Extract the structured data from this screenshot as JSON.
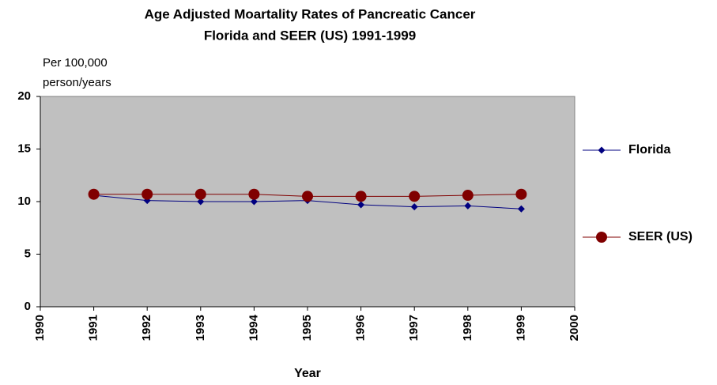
{
  "chart_data": {
    "type": "line",
    "title": "Age Adjusted Moartality Rates of Pancreatic Cancer",
    "subtitle": "Florida and SEER (US) 1991-1999",
    "y_label": [
      "Per 100,000",
      "person/years"
    ],
    "x_label": "Year",
    "x": [
      1991,
      1992,
      1993,
      1994,
      1995,
      1996,
      1997,
      1998,
      1999
    ],
    "series": [
      {
        "name": "Florida",
        "color": "#000080",
        "marker": "diamond",
        "values": [
          10.6,
          10.1,
          10.0,
          10.0,
          10.1,
          9.7,
          9.5,
          9.6,
          9.3
        ]
      },
      {
        "name": "SEER (US)",
        "color": "#800000",
        "marker": "circle",
        "values": [
          10.7,
          10.7,
          10.7,
          10.7,
          10.5,
          10.5,
          10.5,
          10.6,
          10.7
        ]
      }
    ],
    "xlim": [
      1990,
      2000
    ],
    "xticks": [
      1990,
      1991,
      1992,
      1993,
      1994,
      1995,
      1996,
      1997,
      1998,
      1999,
      2000
    ],
    "ylim": [
      0,
      20
    ],
    "yticks": [
      0,
      5,
      10,
      15,
      20
    ],
    "grid": false,
    "plot_background": "#c0c0c0",
    "legend": "right"
  }
}
